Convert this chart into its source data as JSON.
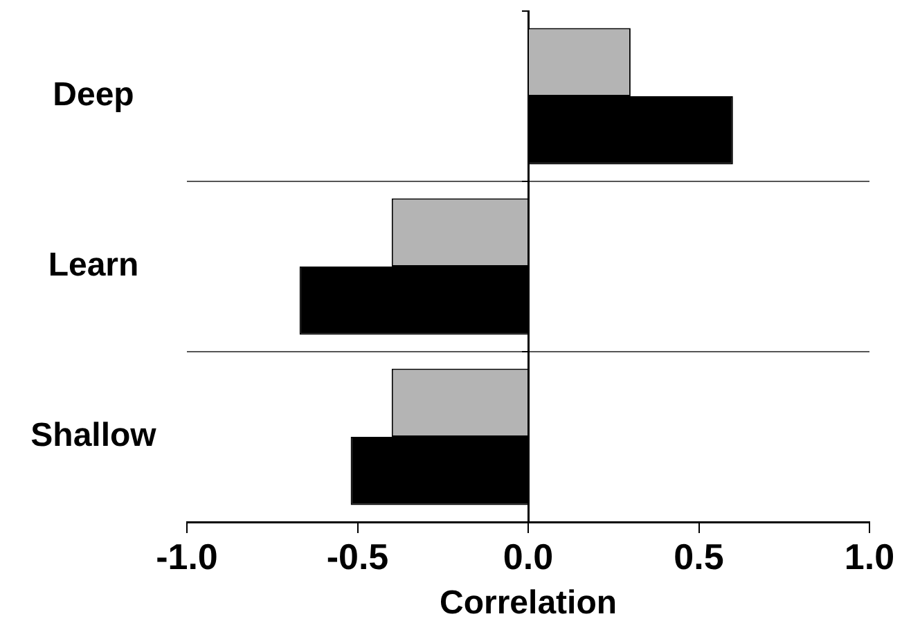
{
  "chart_data": {
    "type": "bar",
    "orientation": "horizontal",
    "xlabel": "Correlation",
    "categories": [
      "Deep",
      "Learn",
      "Shallow"
    ],
    "series": [
      {
        "color": "#b4b4b4",
        "values": [
          0.3,
          -0.4,
          -0.4
        ]
      },
      {
        "color": "#000000",
        "values": [
          0.6,
          -0.67,
          -0.52
        ]
      }
    ],
    "xlim": [
      -1.0,
      1.0
    ],
    "xticks": [
      {
        "value": -1,
        "label": "-1.0"
      },
      {
        "value": -0.5,
        "label": "-0.5"
      },
      {
        "value": 0,
        "label": "0.0"
      },
      {
        "value": 0.5,
        "label": "0.5"
      },
      {
        "value": 1,
        "label": "1.0"
      }
    ],
    "grid": "y",
    "legend": false
  }
}
